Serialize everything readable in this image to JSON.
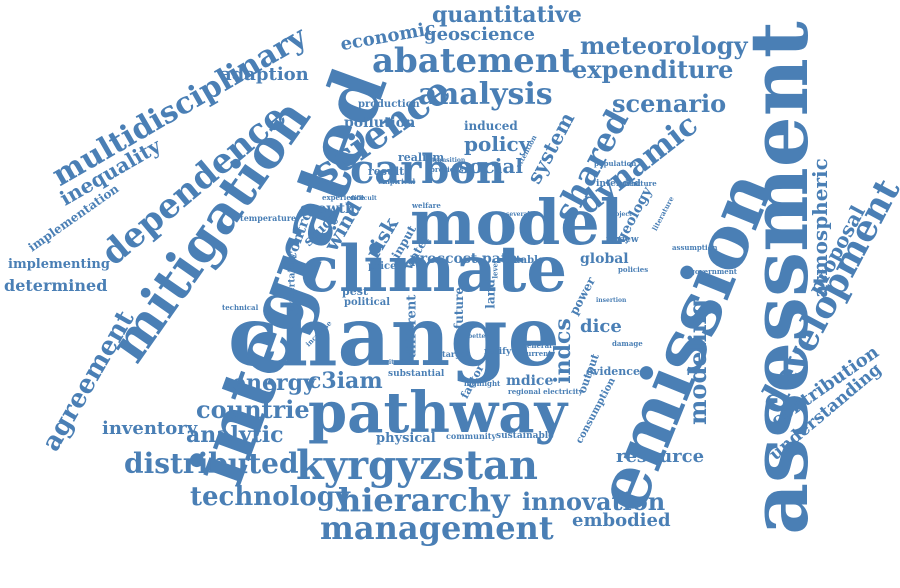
{
  "color": "#4a7fb5",
  "words": [
    {
      "id": "assessment",
      "text": "assessment"
    },
    {
      "id": "emission",
      "text": "emission"
    },
    {
      "id": "change",
      "text": "change"
    },
    {
      "id": "climate",
      "text": "climate"
    },
    {
      "id": "integrated",
      "text": "integrated"
    },
    {
      "id": "model",
      "text": "model"
    },
    {
      "id": "pathway",
      "text": "pathway"
    },
    {
      "id": "mitigation",
      "text": "mitigation"
    },
    {
      "id": "kyrgyzstan",
      "text": "kyrgyzstan"
    },
    {
      "id": "carbon",
      "text": "carbon"
    },
    {
      "id": "development",
      "text": "development"
    },
    {
      "id": "abatement",
      "text": "abatement"
    },
    {
      "id": "hierarchy",
      "text": "hierarchy"
    },
    {
      "id": "management",
      "text": "management"
    },
    {
      "id": "science",
      "text": "science"
    },
    {
      "id": "dependence",
      "text": "dependence"
    },
    {
      "id": "shared",
      "text": "shared"
    },
    {
      "id": "analysis",
      "text": "analysis"
    },
    {
      "id": "multidisciplinary",
      "text": "multidisciplinary"
    },
    {
      "id": "technology",
      "text": "technology"
    },
    {
      "id": "distributed",
      "text": "distributed"
    },
    {
      "id": "innovation",
      "text": "innovation"
    },
    {
      "id": "dynamic",
      "text": "dynamic"
    },
    {
      "id": "scenario",
      "text": "scenario"
    },
    {
      "id": "meteorology",
      "text": "meteorology"
    },
    {
      "id": "expenditure",
      "text": "expenditure"
    },
    {
      "id": "quantitative",
      "text": "quantitative"
    },
    {
      "id": "geoscience",
      "text": "geoscience"
    },
    {
      "id": "economic",
      "text": "economic"
    },
    {
      "id": "countrie",
      "text": "countrie"
    },
    {
      "id": "analytic",
      "text": "analytic"
    },
    {
      "id": "agreement",
      "text": "agreement"
    },
    {
      "id": "modeling",
      "text": "modeling"
    },
    {
      "id": "atmospheric",
      "text": "atmospheric"
    },
    {
      "id": "proposal",
      "text": "proposal"
    },
    {
      "id": "contribution",
      "text": "contribution"
    },
    {
      "id": "understanding",
      "text": "understanding"
    },
    {
      "id": "energy",
      "text": "energy"
    },
    {
      "id": "c3iam",
      "text": "c3iam"
    },
    {
      "id": "inventory",
      "text": "inventory"
    },
    {
      "id": "resource",
      "text": "resource"
    },
    {
      "id": "embodied",
      "text": "embodied"
    },
    {
      "id": "inequality",
      "text": "inequality"
    },
    {
      "id": "adaption",
      "text": "adaption"
    },
    {
      "id": "policy",
      "text": "policy"
    },
    {
      "id": "social",
      "text": "social"
    },
    {
      "id": "system",
      "text": "system"
    },
    {
      "id": "risk",
      "text": "risk"
    },
    {
      "id": "wind",
      "text": "wind"
    },
    {
      "id": "pollution",
      "text": "pollution"
    },
    {
      "id": "production",
      "text": "production"
    },
    {
      "id": "induced",
      "text": "induced"
    },
    {
      "id": "physical",
      "text": "physical"
    },
    {
      "id": "indcs",
      "text": "indcs"
    },
    {
      "id": "dice",
      "text": "dice"
    },
    {
      "id": "mdice",
      "text": "mdice"
    },
    {
      "id": "implementing",
      "text": "implementing"
    },
    {
      "id": "determined",
      "text": "determined"
    },
    {
      "id": "implementation",
      "text": "implementation"
    },
    {
      "id": "geology",
      "text": "geology"
    },
    {
      "id": "proccost",
      "text": "proccost"
    },
    {
      "id": "path",
      "text": "path"
    },
    {
      "id": "global",
      "text": "global"
    },
    {
      "id": "growth",
      "text": "growth"
    },
    {
      "id": "control",
      "text": "control"
    },
    {
      "id": "study",
      "text": "study"
    },
    {
      "id": "realism",
      "text": "realism"
    },
    {
      "id": "result",
      "text": "result"
    },
    {
      "id": "input",
      "text": "input"
    },
    {
      "id": "water",
      "text": "water"
    },
    {
      "id": "price",
      "text": "price"
    },
    {
      "id": "pest",
      "text": "pest"
    },
    {
      "id": "political",
      "text": "political"
    },
    {
      "id": "different",
      "text": "different"
    },
    {
      "id": "future",
      "text": "future"
    },
    {
      "id": "land",
      "text": "land"
    },
    {
      "id": "power",
      "text": "power"
    },
    {
      "id": "output",
      "text": "output"
    },
    {
      "id": "evidence",
      "text": "evidence"
    },
    {
      "id": "consumption",
      "text": "consumption"
    },
    {
      "id": "table",
      "text": "table"
    },
    {
      "id": "review",
      "text": "review"
    },
    {
      "id": "factor",
      "text": "factor"
    },
    {
      "id": "substantial",
      "text": "substantial"
    },
    {
      "id": "community",
      "text": "community"
    },
    {
      "id": "sustainable",
      "text": "sustainable"
    },
    {
      "id": "regional",
      "text": "regional electricity"
    },
    {
      "id": "general",
      "text": "general"
    },
    {
      "id": "current",
      "text": "current"
    },
    {
      "id": "target",
      "text": "target"
    },
    {
      "id": "ratify",
      "text": "ratify"
    },
    {
      "id": "highlight",
      "text": "highlight"
    },
    {
      "id": "uncertainty",
      "text": "uncertainty"
    },
    {
      "id": "temperature",
      "text": "temperature"
    },
    {
      "id": "experience",
      "text": "experience"
    },
    {
      "id": "empirical",
      "text": "empirical"
    },
    {
      "id": "attention",
      "text": "attention"
    },
    {
      "id": "previous",
      "text": "previous"
    },
    {
      "id": "transition",
      "text": "transition"
    },
    {
      "id": "population",
      "text": "population"
    },
    {
      "id": "intended",
      "text": "intended"
    },
    {
      "id": "structure",
      "text": "structure"
    },
    {
      "id": "literature",
      "text": "literature"
    },
    {
      "id": "assumption",
      "text": "assumption"
    },
    {
      "id": "government",
      "text": "government"
    },
    {
      "id": "policies",
      "text": "policies"
    },
    {
      "id": "insertion",
      "text": "insertion"
    },
    {
      "id": "damage",
      "text": "damage"
    },
    {
      "id": "project",
      "text": "project"
    },
    {
      "id": "technical",
      "text": "technical"
    },
    {
      "id": "increase",
      "text": "increase"
    },
    {
      "id": "welfare",
      "text": "welfare"
    },
    {
      "id": "difficult",
      "text": "difficult"
    },
    {
      "id": "several",
      "text": "several"
    },
    {
      "id": "criterion",
      "text": "criterion"
    },
    {
      "id": "better",
      "text": "better"
    },
    {
      "id": "level",
      "text": "level"
    }
  ]
}
